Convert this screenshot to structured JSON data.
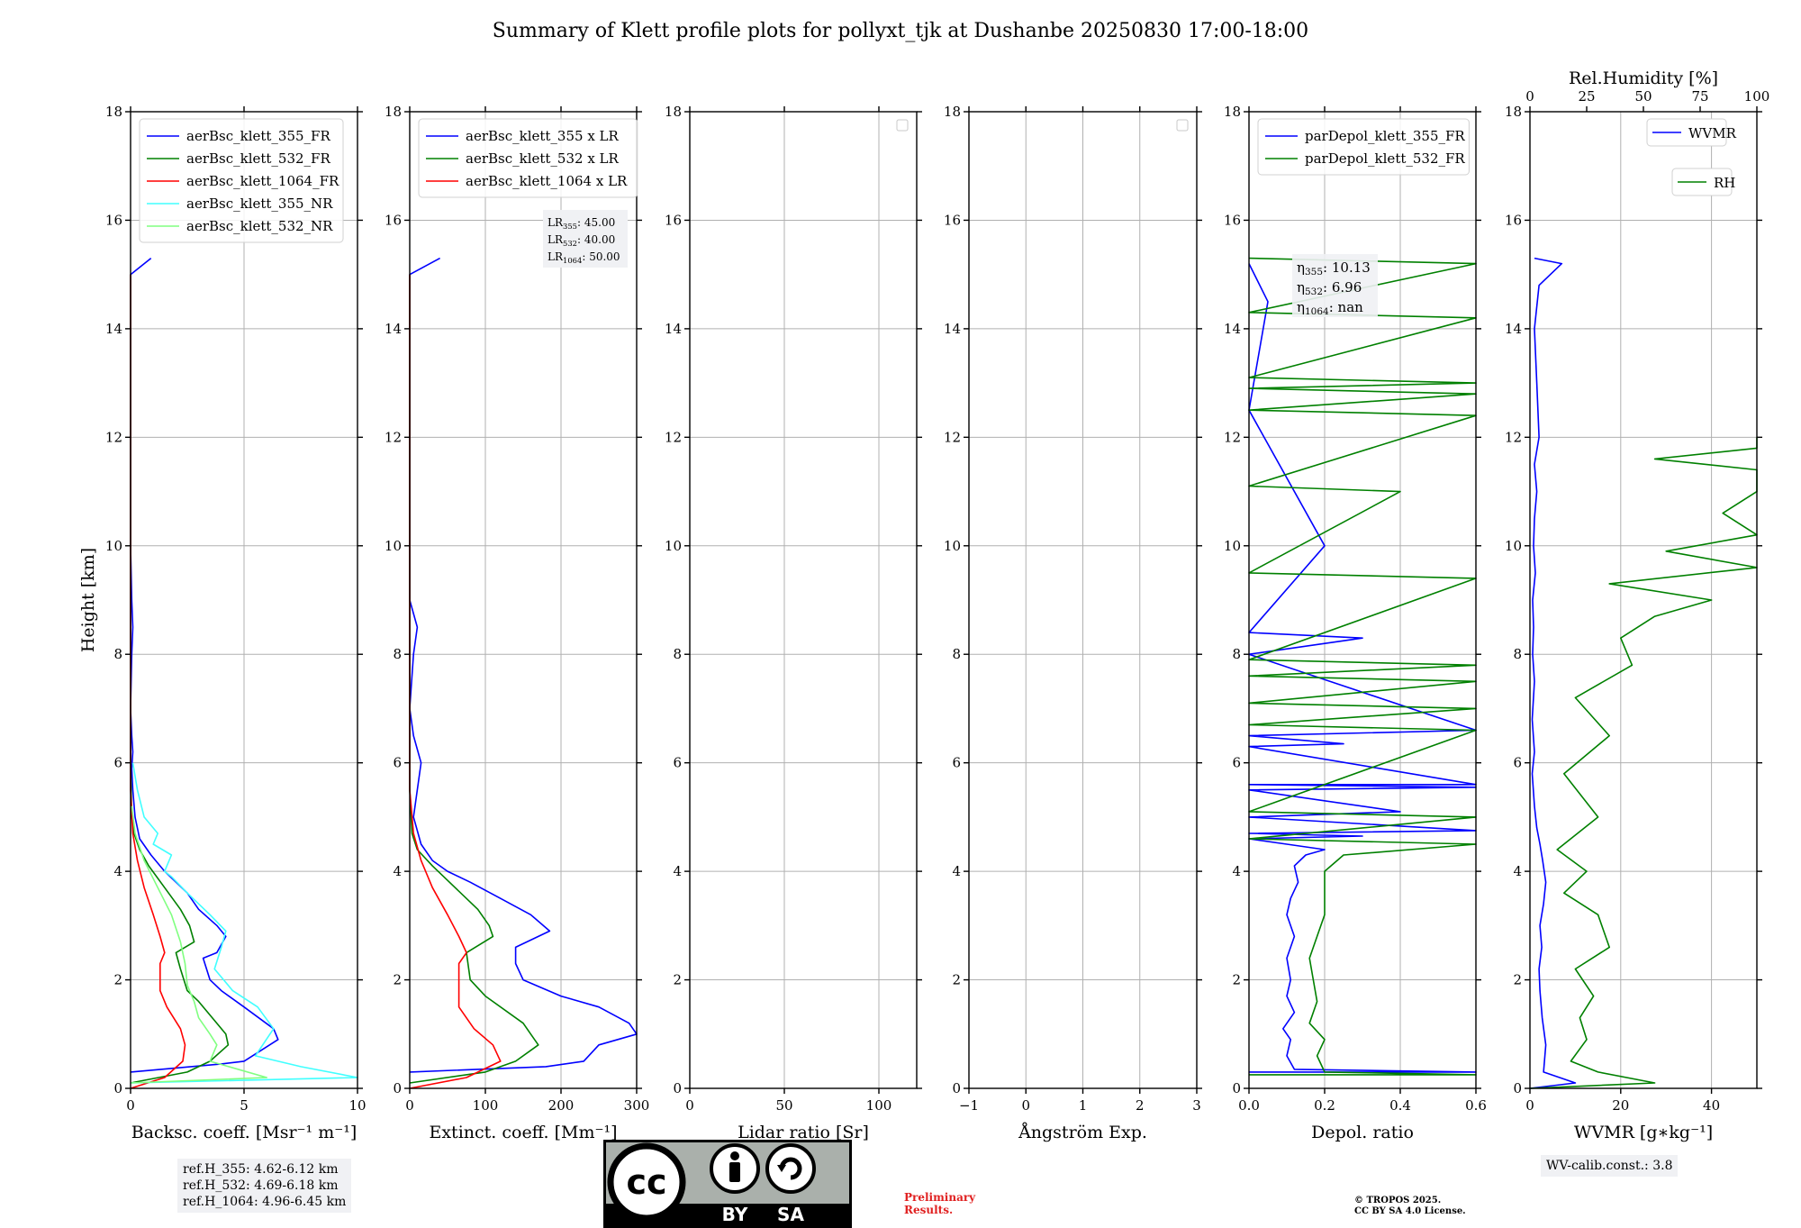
{
  "title": "Summary of Klett profile plots for pollyxt_tjk at Dushanbe 20250830 17:00-18:00",
  "footer": {
    "refH_lines": [
      "ref.H_355: 4.62-6.12 km",
      "ref.H_532: 4.69-6.18 km",
      "ref.H_1064: 4.96-6.45 km"
    ],
    "preliminary": [
      "Preliminary",
      "Results."
    ],
    "copyright": [
      "© TROPOS 2025.",
      "CC BY SA 4.0 License."
    ],
    "wv_calib": "WV-calib.const.: 3.8",
    "license_badge": {
      "cc": "cc",
      "by": "BY",
      "sa": "SA"
    }
  },
  "chart_data": [
    {
      "type": "line",
      "ylabel": "Height [km]",
      "xlabel": "Backsc. coeff. [Msr⁻¹ m⁻¹]",
      "xlim": [
        0,
        10
      ],
      "ylim": [
        0,
        18
      ],
      "xticks": [
        "0",
        "5",
        "10"
      ],
      "yticks": [
        "0",
        "2",
        "4",
        "6",
        "8",
        "10",
        "12",
        "14",
        "16",
        "18"
      ],
      "grid": true,
      "legend_position": "top-left",
      "series": [
        {
          "name": "aerBsc_klett_355_FR",
          "color": "#0000ff",
          "x": [
            0,
            4.0,
            5.0,
            6.5,
            6.3,
            5.0,
            4.0,
            3.5,
            3.2,
            3.8,
            4.2,
            3.8,
            3.0,
            2.5,
            1.5,
            0.9,
            0.4,
            0.2,
            0.1,
            0.05,
            0.1,
            0.05,
            0.0,
            0.05,
            0.1,
            0.05,
            0.0,
            0.0,
            0.0,
            0.0,
            0.0,
            0.9
          ],
          "y": [
            0.3,
            0.45,
            0.5,
            0.9,
            1.1,
            1.5,
            1.8,
            2.0,
            2.4,
            2.5,
            2.8,
            3.0,
            3.3,
            3.6,
            4.0,
            4.3,
            4.6,
            5.0,
            5.5,
            5.9,
            6.2,
            6.5,
            7.0,
            8.0,
            8.5,
            9.0,
            10.0,
            12.0,
            13.0,
            14.0,
            15.0,
            15.3
          ]
        },
        {
          "name": "aerBsc_klett_532_FR",
          "color": "#008000",
          "x": [
            0,
            2.5,
            3.5,
            4.3,
            4.2,
            3.8,
            3.0,
            2.5,
            2.2,
            2.0,
            2.8,
            2.6,
            2.2,
            1.5,
            0.8,
            0.4,
            0.15,
            0.05,
            0.0,
            0.0,
            0.0,
            0.0
          ],
          "y": [
            0.1,
            0.3,
            0.5,
            0.8,
            1.0,
            1.2,
            1.6,
            1.8,
            2.2,
            2.5,
            2.7,
            3.0,
            3.3,
            3.7,
            4.1,
            4.4,
            4.7,
            5.0,
            6.0,
            8.0,
            12.0,
            15.0
          ]
        },
        {
          "name": "aerBsc_klett_1064_FR",
          "color": "#ff0000",
          "x": [
            0,
            1.5,
            2.3,
            2.4,
            2.2,
            1.6,
            1.3,
            1.3,
            1.5,
            1.3,
            1.0,
            0.6,
            0.3,
            0.1,
            0.0,
            0.0,
            0.0
          ],
          "y": [
            0.0,
            0.2,
            0.5,
            0.8,
            1.1,
            1.5,
            1.8,
            2.3,
            2.5,
            2.8,
            3.2,
            3.7,
            4.2,
            4.7,
            5.5,
            8.0,
            15.0
          ]
        },
        {
          "name": "aerBsc_klett_355_NR",
          "color": "#40ffff",
          "x": [
            0,
            10,
            7.5,
            5.5,
            6.3,
            5.6,
            4.5,
            3.7,
            4.0,
            4.2,
            3.5,
            2.5,
            1.8,
            1.5,
            1.8,
            1.0,
            1.2,
            0.6,
            0.3,
            0.1
          ],
          "y": [
            0.1,
            0.2,
            0.4,
            0.6,
            1.1,
            1.5,
            1.8,
            2.2,
            2.6,
            2.9,
            3.2,
            3.6,
            3.9,
            4.0,
            4.3,
            4.5,
            4.7,
            5.0,
            5.5,
            6.0
          ]
        },
        {
          "name": "aerBsc_klett_532_NR",
          "color": "#80ff80",
          "x": [
            0,
            6.0,
            3.5,
            3.8,
            3.5,
            3.0,
            2.8,
            2.5,
            2.4,
            2.2,
            1.8,
            1.2,
            0.6,
            0.2,
            0.05
          ],
          "y": [
            0.1,
            0.2,
            0.5,
            0.8,
            1.0,
            1.3,
            1.6,
            1.9,
            2.3,
            2.7,
            3.2,
            3.7,
            4.2,
            4.7,
            5.2
          ]
        }
      ]
    },
    {
      "type": "line",
      "xlabel": "Extinct. coeff. [Mm⁻¹]",
      "xlim": [
        0,
        300
      ],
      "ylim": [
        0,
        18
      ],
      "xticks": [
        "0",
        "100",
        "200",
        "300"
      ],
      "yticks": [
        "0",
        "2",
        "4",
        "6",
        "8",
        "10",
        "12",
        "14",
        "16",
        "18"
      ],
      "grid": true,
      "legend_position": "top-left",
      "lr_labels": [
        {
          "sub": "355",
          "text": ": 45.00"
        },
        {
          "sub": "532",
          "text": ": 40.00"
        },
        {
          "sub": "1064",
          "text": ": 50.00"
        }
      ],
      "series": [
        {
          "name": "aerBsc_klett_355 x LR",
          "color": "#0000ff",
          "x": [
            0,
            180,
            230,
            250,
            300,
            290,
            250,
            200,
            150,
            140,
            140,
            170,
            185,
            160,
            120,
            80,
            50,
            30,
            15,
            5,
            15,
            5,
            0,
            5,
            10,
            0,
            0,
            0,
            0,
            40
          ],
          "y": [
            0.3,
            0.4,
            0.5,
            0.8,
            1.0,
            1.2,
            1.5,
            1.7,
            2.0,
            2.3,
            2.6,
            2.8,
            2.9,
            3.2,
            3.5,
            3.8,
            4.0,
            4.2,
            4.5,
            5.0,
            6.0,
            6.5,
            7.0,
            8.0,
            8.5,
            9.0,
            12.0,
            14.0,
            15.0,
            15.3
          ]
        },
        {
          "name": "aerBsc_klett_532 x LR",
          "color": "#008000",
          "x": [
            0,
            100,
            140,
            170,
            160,
            150,
            100,
            80,
            75,
            110,
            105,
            90,
            60,
            30,
            10,
            3,
            0,
            0,
            0
          ],
          "y": [
            0.1,
            0.3,
            0.5,
            0.8,
            1.0,
            1.2,
            1.7,
            2.0,
            2.5,
            2.8,
            3.0,
            3.3,
            3.7,
            4.1,
            4.4,
            4.7,
            5.5,
            8.0,
            15.0
          ]
        },
        {
          "name": "aerBsc_klett_1064 x LR",
          "color": "#ff0000",
          "x": [
            0,
            75,
            120,
            110,
            85,
            65,
            65,
            75,
            65,
            50,
            30,
            15,
            5,
            0,
            0,
            0
          ],
          "y": [
            0.0,
            0.2,
            0.5,
            0.8,
            1.1,
            1.5,
            2.3,
            2.5,
            2.8,
            3.2,
            3.7,
            4.2,
            4.7,
            5.5,
            8.0,
            15.0
          ]
        }
      ]
    },
    {
      "type": "line",
      "xlabel": "Lidar ratio [Sr]",
      "xlim": [
        0,
        120
      ],
      "ylim": [
        0,
        18
      ],
      "xticks": [
        "0",
        "50",
        "100"
      ],
      "yticks": [
        "0",
        "2",
        "4",
        "6",
        "8",
        "10",
        "12",
        "14",
        "16",
        "18"
      ],
      "grid": true,
      "legend_position": "top-right",
      "series": []
    },
    {
      "type": "line",
      "xlabel": "Ångström Exp.",
      "xlim": [
        -1,
        3
      ],
      "ylim": [
        0,
        18
      ],
      "xticks": [
        "−1",
        "0",
        "1",
        "2",
        "3"
      ],
      "yticks": [
        "0",
        "2",
        "4",
        "6",
        "8",
        "10",
        "12",
        "14",
        "16",
        "18"
      ],
      "grid": true,
      "legend_position": "top-right",
      "series": []
    },
    {
      "type": "line",
      "xlabel": "Depol. ratio",
      "xlim": [
        0,
        0.6
      ],
      "ylim": [
        0,
        18
      ],
      "xticks": [
        "0.0",
        "0.2",
        "0.4",
        "0.6"
      ],
      "yticks": [
        "0",
        "2",
        "4",
        "6",
        "8",
        "10",
        "12",
        "14",
        "16",
        "18"
      ],
      "grid": true,
      "legend_position": "top-left",
      "eta_labels": [
        {
          "sub": "355",
          "text": ": 10.13"
        },
        {
          "sub": "532",
          "text": ": 6.96"
        },
        {
          "sub": "1064",
          "text": ": nan"
        }
      ],
      "series": [
        {
          "name": "parDepol_klett_355_FR",
          "color": "#0000ff",
          "x": [
            0,
            0.6,
            0.12,
            0.1,
            0.11,
            0.09,
            0.12,
            0.1,
            0.11,
            0.1,
            0.12,
            0.1,
            0.11,
            0.13,
            0.12,
            0.15,
            0.2,
            0.1,
            0.0,
            0.3,
            0.0,
            0.6,
            0.0,
            0.4,
            0.0,
            0.6,
            0.0,
            0.6,
            0.0,
            0.25,
            0.0,
            0.6,
            0.0,
            0.3,
            0.0,
            0.2,
            0.0,
            0.05,
            0.0
          ],
          "y": [
            0.3,
            0.3,
            0.35,
            0.6,
            0.9,
            1.1,
            1.4,
            1.7,
            2.0,
            2.4,
            2.8,
            3.2,
            3.5,
            3.8,
            4.1,
            4.3,
            4.4,
            4.5,
            4.6,
            4.65,
            4.7,
            4.75,
            5.0,
            5.1,
            5.5,
            5.55,
            5.6,
            5.6,
            6.3,
            6.35,
            6.5,
            6.6,
            8.0,
            8.3,
            8.4,
            10.0,
            12.5,
            14.5,
            15.2
          ]
        },
        {
          "name": "parDepol_klett_532_FR",
          "color": "#008000",
          "x": [
            0,
            0.6,
            0.2,
            0.18,
            0.2,
            0.16,
            0.18,
            0.17,
            0.16,
            0.18,
            0.2,
            0.2,
            0.2,
            0.25,
            0.6,
            0.0,
            0.6,
            0.0,
            0.6,
            0.0,
            0.6,
            0.0,
            0.6,
            0.0,
            0.6,
            0.0,
            0.6,
            0.0,
            0.4,
            0.0,
            0.6,
            0.0,
            0.6,
            0.0,
            0.6,
            0.0,
            0.6,
            0.0,
            0.6,
            0.0
          ],
          "y": [
            0.25,
            0.25,
            0.3,
            0.6,
            0.9,
            1.2,
            1.6,
            2.0,
            2.4,
            2.8,
            3.2,
            3.6,
            4.0,
            4.3,
            4.5,
            4.6,
            5.0,
            5.1,
            6.6,
            6.7,
            7.0,
            7.1,
            7.5,
            7.6,
            7.8,
            7.9,
            9.4,
            9.5,
            11.0,
            11.1,
            12.4,
            12.5,
            12.8,
            12.9,
            13.0,
            13.1,
            14.2,
            14.3,
            15.2,
            15.3
          ]
        }
      ]
    },
    {
      "type": "line",
      "xlabel": "WVMR [g∗kg⁻¹]",
      "x2label": "Rel.Humidity [%]",
      "xlim": [
        0,
        50
      ],
      "x2lim": [
        0,
        100
      ],
      "ylim": [
        0,
        18
      ],
      "xticks": [
        "0",
        "20",
        "40"
      ],
      "x2ticks": [
        "0",
        "25",
        "50",
        "75",
        "100"
      ],
      "yticks": [
        "0",
        "2",
        "4",
        "6",
        "8",
        "10",
        "12",
        "14",
        "16",
        "18"
      ],
      "grid": true,
      "legend_position": "top-right",
      "series": [
        {
          "name": "WVMR",
          "color": "#0000ff",
          "axis": "bottom",
          "x": [
            0,
            10,
            3,
            3.5,
            2.7,
            2.2,
            2.0,
            2.6,
            2.2,
            3.0,
            3.5,
            2.8,
            2.2,
            1.5,
            1.0,
            0.5,
            1.0,
            0.5,
            1.0,
            0.6,
            0.8,
            0.6,
            1.2,
            0.8,
            1.0,
            1.5,
            1.0,
            2.0,
            1.5,
            1.0,
            2.0,
            7.0,
            1.0
          ],
          "y": [
            0.0,
            0.1,
            0.3,
            0.8,
            1.3,
            1.8,
            2.2,
            2.6,
            3.0,
            3.4,
            3.8,
            4.2,
            4.5,
            4.8,
            5.2,
            5.8,
            6.2,
            6.8,
            7.5,
            8.0,
            8.5,
            9.0,
            9.5,
            10.0,
            10.5,
            11.0,
            11.5,
            12.0,
            13.0,
            14.0,
            14.8,
            15.2,
            15.3
          ]
        },
        {
          "name": "RH",
          "color": "#008000",
          "axis": "top",
          "x": [
            0,
            55,
            30,
            18,
            25,
            22,
            28,
            20,
            35,
            30,
            15,
            25,
            12,
            30,
            15,
            35,
            20,
            45,
            40,
            55,
            80,
            35,
            100,
            60,
            100,
            85,
            100,
            100,
            55,
            100,
            100,
            100
          ],
          "y": [
            0.0,
            0.1,
            0.3,
            0.5,
            0.9,
            1.3,
            1.7,
            2.2,
            2.6,
            3.2,
            3.6,
            4.0,
            4.4,
            5.0,
            5.8,
            6.5,
            7.2,
            7.8,
            8.3,
            8.7,
            9.0,
            9.3,
            9.6,
            9.9,
            10.2,
            10.6,
            11.0,
            11.4,
            11.6,
            11.8,
            12.0,
            12.0
          ]
        }
      ]
    }
  ]
}
